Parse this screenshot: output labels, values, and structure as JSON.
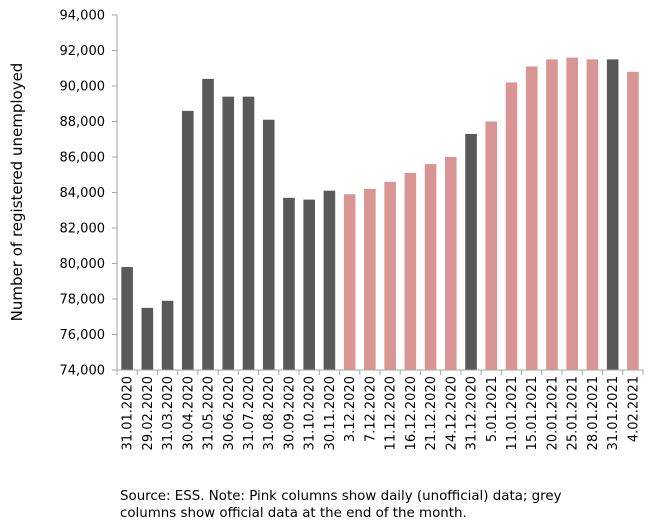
{
  "chart_data": {
    "type": "bar",
    "ylabel": "Number of registered unemployed",
    "ylim": [
      74000,
      94000
    ],
    "ytick_step": 2000,
    "y_ticks": [
      "74,000",
      "76,000",
      "78,000",
      "80,000",
      "82,000",
      "84,000",
      "86,000",
      "88,000",
      "90,000",
      "92,000",
      "94,000"
    ],
    "grid": false,
    "categories": [
      "31.01.2020",
      "29.02.2020",
      "31.03.2020",
      "30.04.2020",
      "31.05.2020",
      "30.06.2020",
      "31.07.2020",
      "31.08.2020",
      "30.09.2020",
      "31.10.2020",
      "30.11.2020",
      "3.12.2020",
      "7.12.2020",
      "11.12.2020",
      "16.12.2020",
      "21.12.2020",
      "24.12.2020",
      "31.12.2020",
      "5.01.2021",
      "11.01.2021",
      "15.01.2021",
      "20.01.2021",
      "25.01.2021",
      "28.01.2021",
      "31.01.2021",
      "4.02.2021"
    ],
    "values": [
      79800,
      77500,
      77900,
      88600,
      90400,
      89400,
      89400,
      88100,
      83700,
      83600,
      84100,
      83900,
      84200,
      84600,
      85100,
      85600,
      86000,
      87300,
      88000,
      90200,
      91100,
      91500,
      91600,
      91500,
      91500,
      90800
    ],
    "types": [
      "official",
      "official",
      "official",
      "official",
      "official",
      "official",
      "official",
      "official",
      "official",
      "official",
      "official",
      "daily",
      "daily",
      "daily",
      "daily",
      "daily",
      "daily",
      "official",
      "daily",
      "daily",
      "daily",
      "daily",
      "daily",
      "daily",
      "official",
      "daily"
    ],
    "colors": {
      "official": "#595959",
      "daily": "#d99594",
      "axis": "#a6a6a6"
    }
  },
  "note": {
    "line1": "Source: ESS. Note: Pink columns show daily (unofficial) data; grey",
    "line2": "columns show official data at the end of the month."
  }
}
